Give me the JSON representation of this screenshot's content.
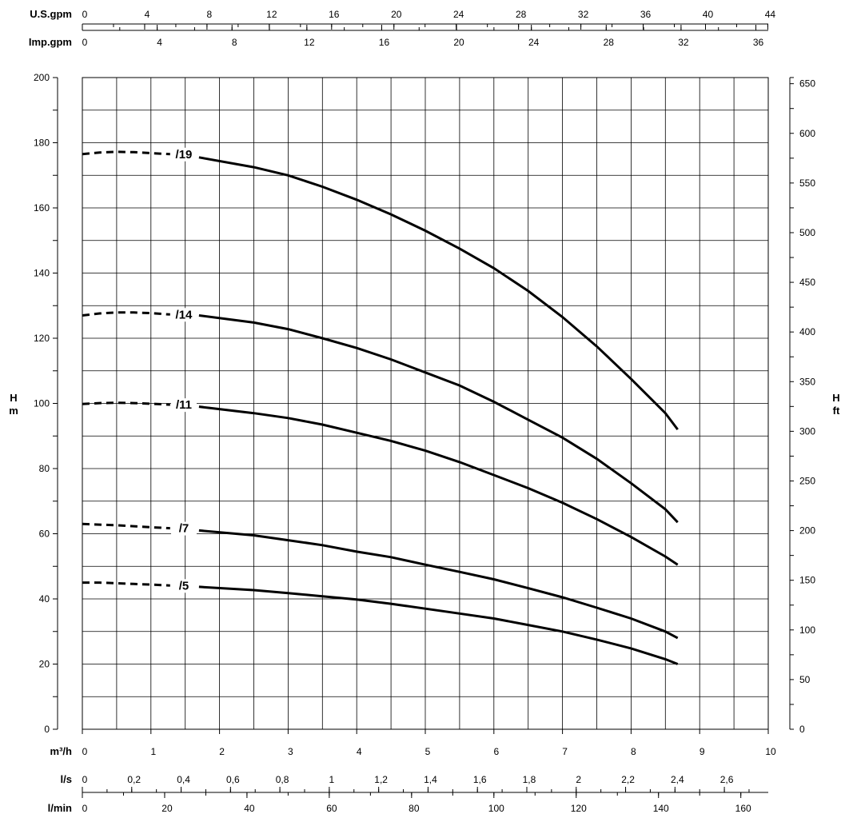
{
  "chart_data": {
    "type": "line",
    "x_unit": "m³/h",
    "xlim": [
      0,
      10
    ],
    "ylim": [
      0,
      200
    ],
    "y_unit": "m",
    "ylabel": "H",
    "y2label": "H",
    "y2_unit": "ft",
    "y2lim": [
      0,
      656.2
    ],
    "grid": true,
    "colors": {
      "curve": "#000000",
      "grid": "#000000"
    },
    "axes": {
      "usgpm": {
        "label": "U.S.gpm",
        "ticks": [
          "0",
          "4",
          "8",
          "12",
          "16",
          "20",
          "24",
          "28",
          "32",
          "36",
          "40",
          "44"
        ],
        "values": [
          0,
          4,
          8,
          12,
          16,
          20,
          24,
          28,
          32,
          36,
          40,
          44
        ],
        "minor_step": 2,
        "factor": 0.2271247
      },
      "impgpm": {
        "label": "Imp.gpm",
        "ticks": [
          "0",
          "4",
          "8",
          "12",
          "16",
          "20",
          "24",
          "28",
          "32",
          "36"
        ],
        "values": [
          0,
          4,
          8,
          12,
          16,
          20,
          24,
          28,
          32,
          36
        ],
        "minor_step": 2,
        "factor": 0.2727655
      },
      "m3h": {
        "label": "m³/h",
        "ticks": [
          "0",
          "1",
          "2",
          "3",
          "4",
          "5",
          "6",
          "7",
          "8",
          "9",
          "10"
        ],
        "values": [
          0,
          1,
          2,
          3,
          4,
          5,
          6,
          7,
          8,
          9,
          10
        ]
      },
      "ls": {
        "label": "l/s",
        "ticks": [
          "0",
          "0,2",
          "0,4",
          "0,6",
          "0,8",
          "1",
          "1,2",
          "1,4",
          "1,6",
          "1,8",
          "2",
          "2,2",
          "2,4",
          "2,6"
        ],
        "values": [
          0,
          0.2,
          0.4,
          0.6,
          0.8,
          1,
          1.2,
          1.4,
          1.6,
          1.8,
          2,
          2.2,
          2.4,
          2.6
        ],
        "minor_step": 0.1,
        "factor": 3.6
      },
      "lmin": {
        "label": "l/min",
        "ticks": [
          "0",
          "20",
          "40",
          "60",
          "80",
          "100",
          "120",
          "140",
          "160"
        ],
        "values": [
          0,
          20,
          40,
          60,
          80,
          100,
          120,
          140,
          160
        ],
        "minor_step": 10,
        "factor": 0.06
      },
      "left": {
        "ticks": [
          "0",
          "20",
          "40",
          "60",
          "80",
          "100",
          "120",
          "140",
          "160",
          "180",
          "200"
        ],
        "values": [
          0,
          20,
          40,
          60,
          80,
          100,
          120,
          140,
          160,
          180,
          200
        ]
      },
      "right": {
        "ticks": [
          "0",
          "50",
          "100",
          "150",
          "200",
          "250",
          "300",
          "350",
          "400",
          "450",
          "500",
          "550",
          "600",
          "650"
        ],
        "values": [
          0,
          50,
          100,
          150,
          200,
          250,
          300,
          350,
          400,
          450,
          500,
          550,
          600,
          650
        ],
        "factor": 0.3048
      }
    },
    "series": [
      {
        "name": "/19",
        "dashed": {
          "x": [
            0,
            0.25,
            0.5,
            0.75,
            1.0,
            1.28
          ],
          "y": [
            176.5,
            177,
            177.2,
            177.1,
            176.8,
            176.5
          ]
        },
        "solid": {
          "x": [
            1.7,
            2.5,
            3.0,
            3.5,
            4.0,
            4.5,
            5.0,
            5.5,
            6.0,
            6.5,
            7.0,
            7.5,
            8.0,
            8.5,
            8.68
          ],
          "y": [
            175.5,
            172.5,
            170,
            166.5,
            162.5,
            158,
            153,
            147.5,
            141.5,
            134.5,
            126.5,
            117.5,
            107.5,
            97,
            92
          ]
        }
      },
      {
        "name": "/14",
        "dashed": {
          "x": [
            0,
            0.25,
            0.5,
            0.75,
            1.0,
            1.28
          ],
          "y": [
            127,
            127.6,
            127.9,
            127.9,
            127.7,
            127.3
          ]
        },
        "solid": {
          "x": [
            1.7,
            2.5,
            3.0,
            3.5,
            4.0,
            4.5,
            5.0,
            5.5,
            6.0,
            6.5,
            7.0,
            7.5,
            8.0,
            8.5,
            8.68
          ],
          "y": [
            127,
            124.8,
            122.8,
            120,
            117,
            113.5,
            109.5,
            105.5,
            100.5,
            95,
            89.5,
            83,
            75.5,
            67.5,
            63.5
          ]
        }
      },
      {
        "name": "/11",
        "dashed": {
          "x": [
            0,
            0.25,
            0.5,
            0.75,
            1.0,
            1.28
          ],
          "y": [
            99.8,
            100.1,
            100.2,
            100.1,
            99.9,
            99.6
          ]
        },
        "solid": {
          "x": [
            1.7,
            2.5,
            3.0,
            3.5,
            4.0,
            4.5,
            5.0,
            5.5,
            6.0,
            6.5,
            7.0,
            7.5,
            8.0,
            8.5,
            8.68
          ],
          "y": [
            99,
            97,
            95.5,
            93.5,
            91,
            88.5,
            85.5,
            82,
            78,
            74,
            69.5,
            64.5,
            59,
            53,
            50.5
          ]
        }
      },
      {
        "name": "/7",
        "dashed": {
          "x": [
            0,
            0.25,
            0.5,
            0.75,
            1.0,
            1.28
          ],
          "y": [
            63,
            62.8,
            62.6,
            62.3,
            62,
            61.7
          ]
        },
        "solid": {
          "x": [
            1.7,
            2.5,
            3.0,
            3.5,
            4.0,
            4.5,
            5.0,
            5.5,
            6.0,
            6.5,
            7.0,
            7.5,
            8.0,
            8.5,
            8.68
          ],
          "y": [
            61,
            59.5,
            58,
            56.5,
            54.5,
            52.8,
            50.5,
            48.3,
            46,
            43.3,
            40.5,
            37.3,
            34,
            30,
            28
          ]
        }
      },
      {
        "name": "/5",
        "dashed": {
          "x": [
            0,
            0.25,
            0.5,
            0.75,
            1.0,
            1.28
          ],
          "y": [
            45,
            45,
            44.8,
            44.6,
            44.4,
            44.1
          ]
        },
        "solid": {
          "x": [
            1.7,
            2.5,
            3.0,
            3.5,
            4.0,
            4.5,
            5.0,
            5.5,
            6.0,
            6.5,
            7.0,
            7.5,
            8.0,
            8.5,
            8.68
          ],
          "y": [
            43.7,
            42.7,
            41.8,
            40.8,
            39.8,
            38.5,
            37,
            35.5,
            34,
            32,
            30,
            27.5,
            24.8,
            21.5,
            20
          ]
        }
      }
    ]
  }
}
